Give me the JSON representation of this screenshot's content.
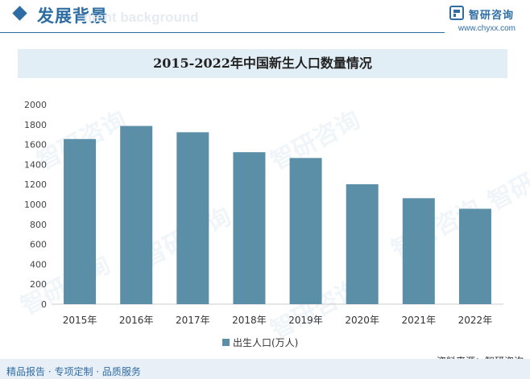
{
  "header": {
    "section_title": "发展背景",
    "ghost_text": "ment background",
    "brand_name": "智研咨询",
    "brand_url": "www.chyxx.com",
    "accent_color": "#2e6da4"
  },
  "footer": {
    "left_text": "精品报告 · 专项定制 · 品质服务",
    "source_text": "资料来源：智研咨询"
  },
  "watermark": {
    "text": "智研咨询",
    "icon": "zhiyan-logo-icon"
  },
  "chart_data": {
    "type": "bar",
    "title": "2015-2022年中国新生人口数量情况",
    "categories": [
      "2015年",
      "2016年",
      "2017年",
      "2018年",
      "2019年",
      "2020年",
      "2021年",
      "2022年"
    ],
    "series": [
      {
        "name": "出生人口(万人)",
        "values": [
          1655,
          1786,
          1723,
          1523,
          1465,
          1202,
          1062,
          956
        ]
      }
    ],
    "ylim": [
      0,
      2000
    ],
    "yticks": [
      0,
      200,
      400,
      600,
      800,
      1000,
      1200,
      1400,
      1600,
      1800,
      2000
    ],
    "grid": false,
    "legend_position": "bottom",
    "bar_color": "#5b8fa8",
    "xlabel": "",
    "ylabel": ""
  }
}
